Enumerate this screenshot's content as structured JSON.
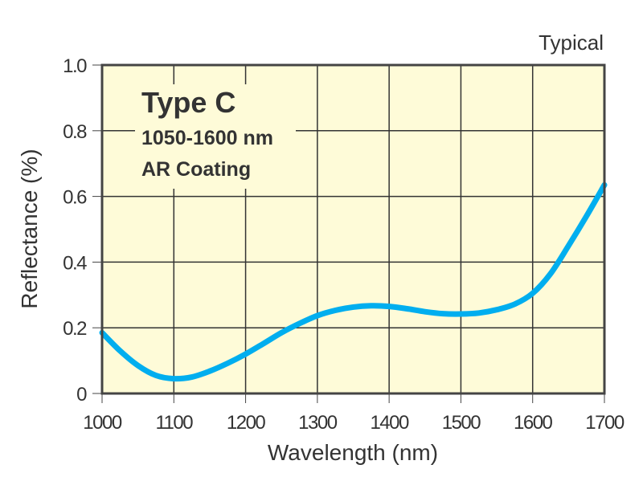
{
  "chart_data": {
    "type": "line",
    "title": "",
    "note": "Typical",
    "xlabel": "Wavelength (nm)",
    "ylabel": "Reflectance (%)",
    "xlim": [
      1000,
      1700
    ],
    "ylim": [
      0,
      1.0
    ],
    "x_ticks": [
      1000,
      1100,
      1200,
      1300,
      1400,
      1500,
      1600,
      1700
    ],
    "x_tick_labels": [
      "1000",
      "1100",
      "1200",
      "1300",
      "1400",
      "1500",
      "1600",
      "1700"
    ],
    "y_ticks": [
      0,
      0.2,
      0.4,
      0.6,
      0.8,
      1.0
    ],
    "y_tick_labels": [
      "0",
      "0.2",
      "0.4",
      "0.6",
      "0.8",
      "1.0"
    ],
    "grid": true,
    "annotation": {
      "title": "Type C",
      "lines": [
        "1050-1600 nm",
        "AR Coating"
      ]
    },
    "colors": {
      "plot_background": "#fefbd8",
      "series": "#00aeef",
      "grid": "#333333",
      "axis": "#444444",
      "text": "#333333"
    },
    "series": [
      {
        "name": "Type C AR Coating",
        "x": [
          1000,
          1025,
          1050,
          1075,
          1100,
          1125,
          1150,
          1175,
          1200,
          1225,
          1250,
          1275,
          1300,
          1325,
          1350,
          1375,
          1400,
          1425,
          1450,
          1475,
          1500,
          1525,
          1550,
          1575,
          1600,
          1625,
          1650,
          1675,
          1700
        ],
        "y": [
          0.185,
          0.13,
          0.085,
          0.055,
          0.045,
          0.05,
          0.068,
          0.092,
          0.12,
          0.152,
          0.185,
          0.213,
          0.237,
          0.253,
          0.263,
          0.267,
          0.265,
          0.258,
          0.249,
          0.243,
          0.242,
          0.245,
          0.255,
          0.272,
          0.305,
          0.365,
          0.45,
          0.54,
          0.635
        ]
      }
    ]
  }
}
